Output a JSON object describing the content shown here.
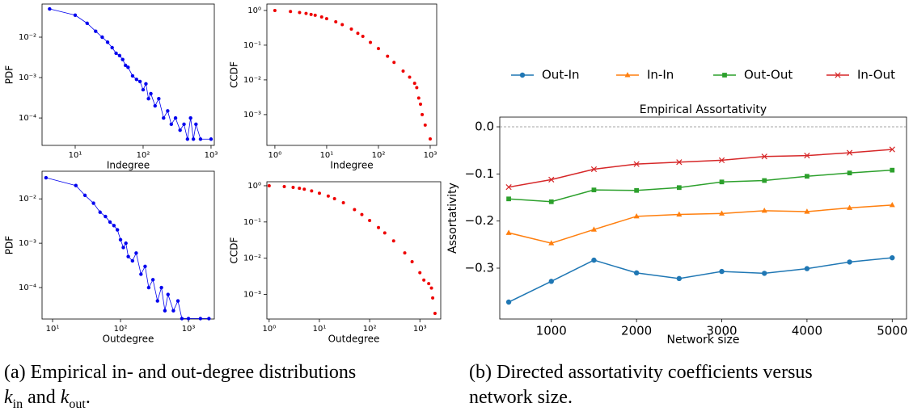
{
  "chart_data": [
    {
      "type": "line",
      "xlabel": "Indegree",
      "ylabel": "PDF",
      "xscale": "log",
      "yscale": "log",
      "xlim": [
        3.25,
        1117
      ],
      "ylim": [
        2.1e-05,
        0.066
      ],
      "xticks": [
        {
          "value": 10,
          "label": "10¹"
        },
        {
          "value": 100,
          "label": "10²"
        },
        {
          "value": 1000,
          "label": "10³"
        }
      ],
      "yticks": [
        {
          "value": 0.01,
          "label": "10⁻²"
        },
        {
          "value": 0.001,
          "label": "10⁻³"
        },
        {
          "value": 0.0001,
          "label": "10⁻⁴"
        }
      ],
      "x": [
        4.2,
        10,
        15,
        20,
        25,
        30,
        35,
        40,
        45,
        50,
        55,
        60,
        70,
        80,
        90,
        100,
        110,
        120,
        130,
        150,
        170,
        200,
        230,
        260,
        300,
        350,
        400,
        450,
        500,
        550,
        600,
        700,
        1000
      ],
      "series": [
        {
          "color": "#0000ee",
          "marker": "circle",
          "values": [
            0.05,
            0.035,
            0.022,
            0.014,
            0.01,
            0.0075,
            0.0055,
            0.004,
            0.0035,
            0.0028,
            0.002,
            0.0018,
            0.0011,
            0.0009,
            0.0008,
            0.0005,
            0.0007,
            0.0003,
            0.0004,
            0.0002,
            0.0003,
            0.0001,
            0.00015,
            7e-05,
            0.0001,
            5e-05,
            7e-05,
            3e-05,
            0.0001,
            3e-05,
            7e-05,
            3e-05,
            3e-05
          ]
        }
      ]
    },
    {
      "type": "scatter",
      "xlabel": "Indegree",
      "ylabel": "CCDF",
      "xscale": "log",
      "yscale": "log",
      "xlim": [
        0.7,
        1334
      ],
      "ylim": [
        0.00013,
        1.53
      ],
      "xticks": [
        {
          "value": 1,
          "label": "10⁰"
        },
        {
          "value": 10,
          "label": "10¹"
        },
        {
          "value": 100,
          "label": "10²"
        },
        {
          "value": 1000,
          "label": "10³"
        }
      ],
      "yticks": [
        {
          "value": 1,
          "label": "10⁰"
        },
        {
          "value": 0.1,
          "label": "10⁻¹"
        },
        {
          "value": 0.01,
          "label": "10⁻²"
        },
        {
          "value": 0.001,
          "label": "10⁻³"
        }
      ],
      "x": [
        1,
        2,
        3,
        4,
        5,
        6,
        8,
        10,
        15,
        20,
        30,
        40,
        50,
        70,
        100,
        150,
        200,
        300,
        400,
        500,
        550,
        600,
        650,
        700,
        800,
        1000
      ],
      "series": [
        {
          "color": "#ee0000",
          "marker": "dot",
          "values": [
            1,
            0.93,
            0.87,
            0.82,
            0.77,
            0.73,
            0.65,
            0.58,
            0.47,
            0.39,
            0.29,
            0.22,
            0.18,
            0.12,
            0.08,
            0.048,
            0.032,
            0.018,
            0.012,
            0.008,
            0.006,
            0.003,
            0.002,
            0.001,
            0.0005,
            0.0002
          ]
        }
      ]
    },
    {
      "type": "line",
      "xlabel": "Outdegree",
      "ylabel": "PDF",
      "xscale": "log",
      "yscale": "log",
      "xlim": [
        7,
        2400
      ],
      "ylim": [
        1.95e-05,
        0.042
      ],
      "xticks": [
        {
          "value": 10,
          "label": "10¹"
        },
        {
          "value": 100,
          "label": "10²"
        },
        {
          "value": 1000,
          "label": "10³"
        }
      ],
      "yticks": [
        {
          "value": 0.01,
          "label": "10⁻²"
        },
        {
          "value": 0.001,
          "label": "10⁻³"
        },
        {
          "value": 0.0001,
          "label": "10⁻⁴"
        }
      ],
      "x": [
        8,
        22,
        30,
        40,
        50,
        60,
        70,
        80,
        90,
        100,
        110,
        120,
        130,
        150,
        170,
        200,
        230,
        260,
        300,
        350,
        400,
        450,
        500,
        600,
        700,
        800,
        1000,
        1500,
        2000
      ],
      "series": [
        {
          "color": "#0000ee",
          "marker": "circle",
          "values": [
            0.03,
            0.02,
            0.012,
            0.008,
            0.005,
            0.004,
            0.003,
            0.0025,
            0.002,
            0.0012,
            0.0008,
            0.001,
            0.0005,
            0.0004,
            0.0006,
            0.0002,
            0.0003,
            0.0001,
            0.00015,
            5e-05,
            0.0001,
            3e-05,
            7e-05,
            3e-05,
            5e-05,
            2e-05,
            2e-05,
            2e-05,
            2e-05
          ]
        }
      ]
    },
    {
      "type": "scatter",
      "xlabel": "Outdegree",
      "ylabel": "CCDF",
      "xscale": "log",
      "yscale": "log",
      "xlim": [
        0.9,
        2600
      ],
      "ylim": [
        0.00021,
        1.29
      ],
      "xticks": [
        {
          "value": 1,
          "label": "10⁰"
        },
        {
          "value": 10,
          "label": "10¹"
        },
        {
          "value": 100,
          "label": "10²"
        },
        {
          "value": 1000,
          "label": "10³"
        }
      ],
      "yticks": [
        {
          "value": 1,
          "label": "10⁰"
        },
        {
          "value": 0.1,
          "label": "10⁻¹"
        },
        {
          "value": 0.01,
          "label": "10⁻²"
        },
        {
          "value": 0.001,
          "label": "10⁻³"
        }
      ],
      "x": [
        1,
        2,
        3,
        4,
        5,
        7,
        10,
        15,
        20,
        30,
        50,
        70,
        100,
        150,
        200,
        300,
        500,
        700,
        1000,
        1200,
        1500,
        1700,
        1800,
        2000
      ],
      "series": [
        {
          "color": "#ee0000",
          "marker": "dot",
          "values": [
            1,
            0.95,
            0.9,
            0.85,
            0.8,
            0.72,
            0.62,
            0.52,
            0.44,
            0.34,
            0.22,
            0.16,
            0.11,
            0.07,
            0.05,
            0.03,
            0.014,
            0.008,
            0.004,
            0.0025,
            0.002,
            0.0015,
            0.0008,
            0.0003
          ]
        }
      ]
    },
    {
      "type": "line",
      "title": "Empirical Assortativity",
      "xlabel": "Network size",
      "ylabel": "Assortativity",
      "xlim": [
        395,
        5168
      ],
      "ylim": [
        -0.408,
        0.0206
      ],
      "hline": 0,
      "xticks": [
        1000,
        2000,
        3000,
        4000,
        5000
      ],
      "yticks": [
        {
          "value": 0,
          "label": "0.0"
        },
        {
          "value": -0.1,
          "label": "−0.1"
        },
        {
          "value": -0.2,
          "label": "−0.2"
        },
        {
          "value": -0.3,
          "label": "−0.3"
        }
      ],
      "legend": "top",
      "x": [
        500,
        1000,
        1500,
        2000,
        2500,
        3000,
        3500,
        4000,
        4500,
        5000
      ],
      "series": [
        {
          "name": "Out-In",
          "color": "#1f77b4",
          "marker": "circle",
          "values": [
            -0.372,
            -0.328,
            -0.283,
            -0.31,
            -0.322,
            -0.307,
            -0.311,
            -0.301,
            -0.287,
            -0.278
          ]
        },
        {
          "name": "In-In",
          "color": "#ff7f0e",
          "marker": "triangle",
          "values": [
            -0.225,
            -0.247,
            -0.218,
            -0.19,
            -0.186,
            -0.184,
            -0.178,
            -0.18,
            -0.172,
            -0.166
          ]
        },
        {
          "name": "Out-Out",
          "color": "#2ca02c",
          "marker": "square",
          "values": [
            -0.153,
            -0.159,
            -0.134,
            -0.135,
            -0.129,
            -0.117,
            -0.114,
            -0.105,
            -0.098,
            -0.092
          ]
        },
        {
          "name": "In-Out",
          "color": "#d62728",
          "marker": "x",
          "values": [
            -0.128,
            -0.112,
            -0.09,
            -0.079,
            -0.075,
            -0.071,
            -0.063,
            -0.061,
            -0.055,
            -0.048
          ]
        }
      ]
    }
  ],
  "caption_a": {
    "line1": "(a) Empirical in- and out-degree distributions",
    "k1": "k",
    "sub1": "in",
    "mid": "and",
    "k2": "k",
    "sub2": "out",
    "end": "."
  },
  "caption_b": {
    "line1": "(b) Directed assortativity coefficients versus",
    "line2": "network size."
  }
}
